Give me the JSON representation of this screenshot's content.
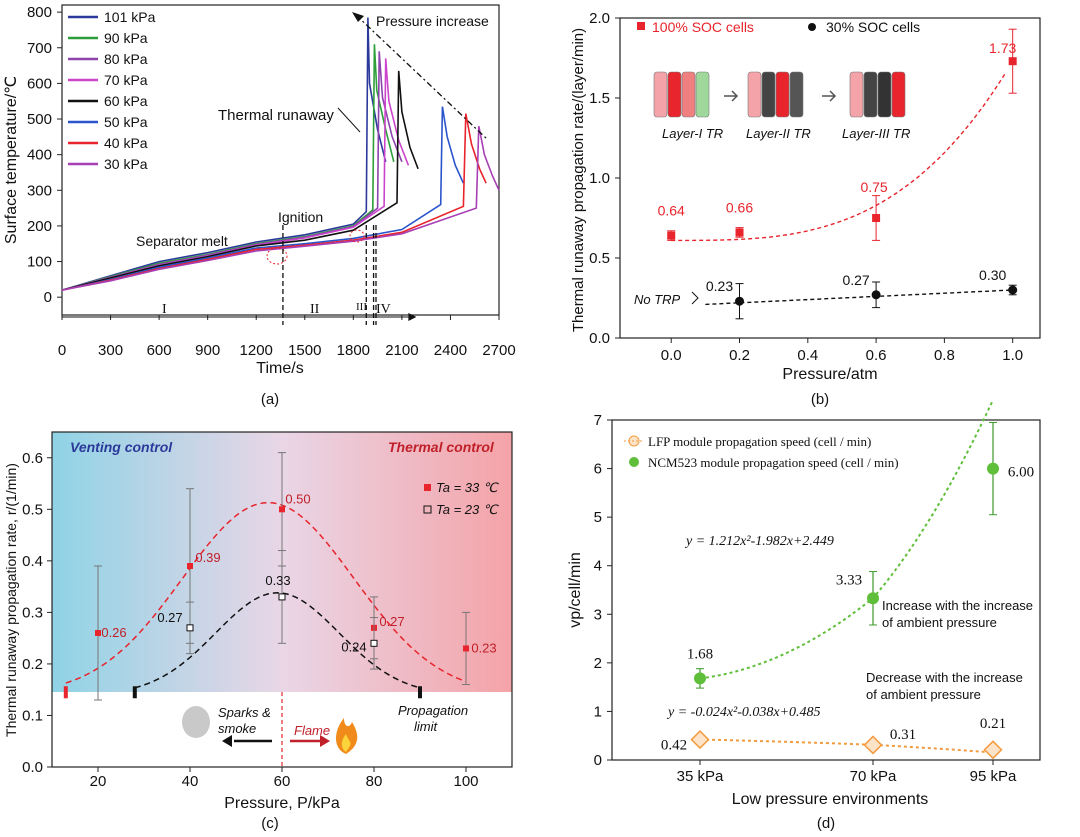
{
  "colors": {
    "red": "#e8242c",
    "black": "#111111",
    "blue": "#2b3a9a",
    "green": "#2d9e3a",
    "purple": "#8e44ad",
    "magenta": "#cc44cc",
    "orange": "#f39a3d",
    "lightgreen": "#5fbf3a"
  },
  "chart_data": [
    {
      "id": "a",
      "type": "line",
      "caption": "(a)",
      "xlabel": "Time/s",
      "ylabel": "Surface temperature/℃",
      "xlim": [
        0,
        2700
      ],
      "ylim": [
        -50,
        820
      ],
      "xticks": [
        "0",
        "300",
        "600",
        "900",
        "1200",
        "1500",
        "1800",
        "2100",
        "2400",
        "2700"
      ],
      "yticks": [
        "0",
        "100",
        "200",
        "300",
        "400",
        "500",
        "600",
        "700",
        "800"
      ],
      "legend": [
        "101 kPa",
        "90 kPa",
        "80 kPa",
        "70 kPa",
        "60 kPa",
        "50 kPa",
        "40 kPa",
        "30 kPa"
      ],
      "legend_colors": [
        "#2b3a9a",
        "#2d9e3a",
        "#8e44ad",
        "#cc44cc",
        "#111111",
        "#2b55cc",
        "#e8242c",
        "#a83fb5"
      ],
      "series": [
        {
          "name": "101 kPa",
          "x": [
            0,
            300,
            600,
            900,
            1200,
            1500,
            1800,
            1880,
            1890,
            1900,
            1950,
            2000
          ],
          "y": [
            20,
            60,
            100,
            125,
            155,
            175,
            205,
            240,
            785,
            600,
            470,
            380
          ]
        },
        {
          "name": "90 kPa",
          "x": [
            0,
            300,
            600,
            900,
            1200,
            1500,
            1800,
            1920,
            1930,
            1945,
            2000,
            2050
          ],
          "y": [
            20,
            58,
            95,
            120,
            150,
            170,
            200,
            245,
            710,
            580,
            470,
            380
          ]
        },
        {
          "name": "80 kPa",
          "x": [
            0,
            300,
            600,
            900,
            1200,
            1500,
            1800,
            1950,
            1960,
            1980,
            2040,
            2100
          ],
          "y": [
            20,
            56,
            92,
            118,
            148,
            168,
            198,
            250,
            690,
            560,
            450,
            380
          ]
        },
        {
          "name": "70 kPa",
          "x": [
            0,
            300,
            600,
            900,
            1200,
            1500,
            1800,
            1990,
            2000,
            2020,
            2080,
            2140
          ],
          "y": [
            20,
            55,
            90,
            116,
            146,
            166,
            196,
            255,
            670,
            550,
            440,
            370
          ]
        },
        {
          "name": "60 kPa",
          "x": [
            0,
            300,
            600,
            900,
            1200,
            1500,
            1800,
            2070,
            2080,
            2100,
            2150,
            2200
          ],
          "y": [
            20,
            54,
            88,
            114,
            144,
            160,
            188,
            265,
            635,
            520,
            420,
            360
          ]
        },
        {
          "name": "50 kPa",
          "x": [
            0,
            300,
            600,
            900,
            1200,
            1500,
            1800,
            2100,
            2340,
            2350,
            2380,
            2430,
            2480
          ],
          "y": [
            20,
            50,
            84,
            110,
            138,
            150,
            165,
            190,
            260,
            535,
            450,
            370,
            320
          ]
        },
        {
          "name": "40 kPa",
          "x": [
            0,
            300,
            600,
            900,
            1200,
            1500,
            1800,
            2100,
            2480,
            2495,
            2530,
            2580,
            2620
          ],
          "y": [
            20,
            48,
            80,
            106,
            134,
            146,
            160,
            182,
            255,
            515,
            430,
            360,
            320
          ]
        },
        {
          "name": "30 kPa",
          "x": [
            0,
            300,
            600,
            900,
            1200,
            1500,
            1800,
            2100,
            2560,
            2575,
            2610,
            2660,
            2700
          ],
          "y": [
            20,
            46,
            78,
            103,
            130,
            143,
            157,
            178,
            250,
            480,
            400,
            340,
            300
          ]
        }
      ],
      "annotations": [
        "Pressure increase",
        "Thermal runaway",
        "Ignition",
        "Separator melt"
      ],
      "stages": [
        "I",
        "II",
        "III",
        "IV"
      ]
    },
    {
      "id": "b",
      "type": "scatter",
      "caption": "(b)",
      "xlabel": "Pressure/atm",
      "ylabel": "Thermal runaway propagation rate/(layer/min)",
      "xlim": [
        -0.15,
        1.08
      ],
      "ylim": [
        0.0,
        2.0
      ],
      "xticks": [
        "0.0",
        "0.2",
        "0.4",
        "0.6",
        "0.8",
        "1.0"
      ],
      "yticks": [
        "0.0",
        "0.5",
        "1.0",
        "1.5",
        "2.0"
      ],
      "legend": [
        "100% SOC cells",
        "30% SOC cells"
      ],
      "series": [
        {
          "name": "100% SOC cells",
          "x": [
            0.0,
            0.2,
            0.6,
            1.0
          ],
          "y": [
            0.64,
            0.66,
            0.75,
            1.73
          ],
          "err": [
            0.03,
            0.03,
            0.14,
            0.2
          ],
          "labels": [
            "0.64",
            "0.66",
            "0.75",
            "1.73"
          ]
        },
        {
          "name": "30% SOC cells",
          "x": [
            0.2,
            0.6,
            1.0
          ],
          "y": [
            0.23,
            0.27,
            0.3
          ],
          "err": [
            0.11,
            0.08,
            0.03
          ],
          "labels": [
            "0.23",
            "0.27",
            "0.30"
          ]
        }
      ],
      "inset_labels": [
        "Layer-I TR",
        "Layer-II TR",
        "Layer-III TR"
      ],
      "no_trp": "No TRP"
    },
    {
      "id": "c",
      "type": "scatter",
      "caption": "(c)",
      "xlabel": "Pressure, P/kPa",
      "ylabel": "Thermal runaway propagation rate, r/(1/min)",
      "xlim": [
        10,
        110
      ],
      "ylim": [
        0.0,
        0.65
      ],
      "xticks": [
        "20",
        "40",
        "60",
        "80",
        "100"
      ],
      "yticks": [
        "0.0",
        "0.1",
        "0.2",
        "0.3",
        "0.4",
        "0.5",
        "0.6"
      ],
      "legend": [
        "Ta = 33 ℃",
        "Ta = 23 ℃"
      ],
      "series": [
        {
          "name": "Ta = 33 ℃",
          "x": [
            20,
            40,
            60,
            80,
            100
          ],
          "y": [
            0.26,
            0.39,
            0.5,
            0.27,
            0.23
          ],
          "err": [
            0.13,
            0.15,
            0.11,
            0.06,
            0.07
          ],
          "labels": [
            "0.26",
            "0.39",
            "0.50",
            "0.27",
            "0.23"
          ]
        },
        {
          "name": "Ta = 23 ℃",
          "x": [
            40,
            60,
            80
          ],
          "y": [
            0.27,
            0.33,
            0.24
          ],
          "err": [
            0.05,
            0.09,
            0.05
          ],
          "labels": [
            "0.27",
            "0.33",
            "0.24"
          ]
        }
      ],
      "region_labels": [
        "Venting control",
        "Thermal control"
      ],
      "bottom_labels": [
        "Sparks &",
        "smoke",
        "Flame",
        "Propagation",
        "limit"
      ]
    },
    {
      "id": "d",
      "type": "scatter",
      "caption": "(d)",
      "xlabel": "Low pressure environments",
      "ylabel": "vp/cell/min",
      "ylim": [
        0,
        7
      ],
      "categories": [
        "35 kPa",
        "70 kPa",
        "95 kPa"
      ],
      "yticks": [
        "0",
        "1",
        "2",
        "3",
        "4",
        "5",
        "6",
        "7"
      ],
      "legend": [
        "LFP  module propagation speed (cell / min)",
        "NCM523  module propagation speed (cell / min)"
      ],
      "series": [
        {
          "name": "LFP",
          "values": [
            0.42,
            0.31,
            0.21
          ],
          "err": [
            0.1,
            0.08,
            0.1
          ],
          "labels": [
            "0.42",
            "0.31",
            "0.21"
          ]
        },
        {
          "name": "NCM523",
          "values": [
            1.68,
            3.33,
            6.0
          ],
          "err": [
            0.2,
            0.55,
            0.95
          ],
          "labels": [
            "1.68",
            "3.33",
            "6.00"
          ]
        }
      ],
      "equations": [
        "y = 1.212x²-1.982x+2.449",
        "y = -0.024x²-0.038x+0.485"
      ],
      "notes": [
        "Increase with the increase",
        "of ambient pressure",
        "Decrease with the increase",
        "of ambient pressure"
      ]
    }
  ]
}
